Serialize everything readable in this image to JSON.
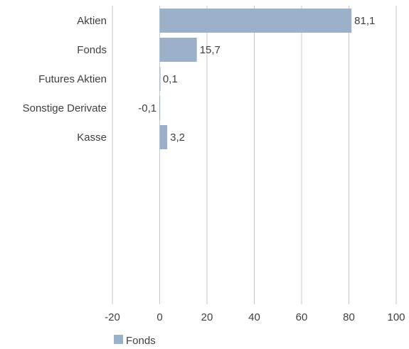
{
  "colors": {
    "bar": "#9bb0c9",
    "grid": "#c8c8c8",
    "text": "#404040"
  },
  "chart_data": {
    "type": "bar",
    "orientation": "horizontal",
    "categories": [
      "Aktien",
      "Fonds",
      "Futures Aktien",
      "Sonstige Derivate",
      "Kasse"
    ],
    "series": [
      {
        "name": "Fonds",
        "values": [
          81.1,
          15.7,
          0.1,
          -0.1,
          3.2
        ]
      }
    ],
    "value_labels": [
      "81,1",
      "15,7",
      "0,1",
      "-0,1",
      "3,2"
    ],
    "xlim": [
      -20,
      100
    ],
    "xticks": [
      -20,
      0,
      20,
      40,
      60,
      80,
      100
    ],
    "xtick_labels": [
      "-20",
      "0",
      "20",
      "40",
      "60",
      "80",
      "100"
    ],
    "grid": "vertical",
    "legend": {
      "position": "bottom-left",
      "entries": [
        "Fonds"
      ]
    },
    "title": "",
    "xlabel": "",
    "ylabel": ""
  }
}
